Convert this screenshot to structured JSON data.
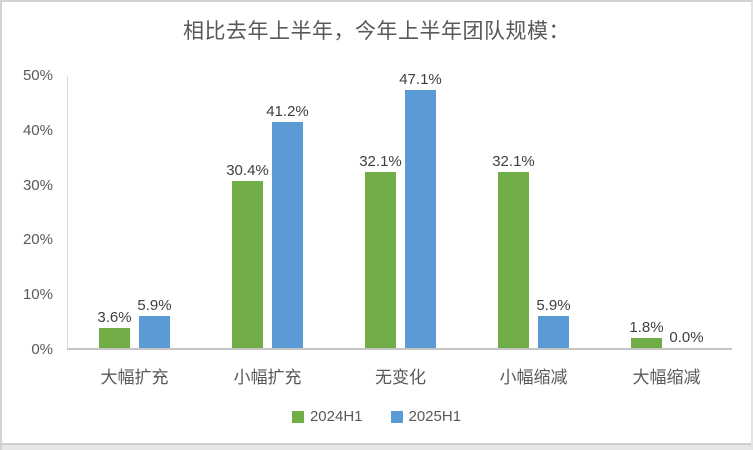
{
  "chart_data": {
    "type": "bar",
    "title": "相比去年上半年，今年上半年团队规模：",
    "categories": [
      "大幅扩充",
      "小幅扩充",
      "无变化",
      "小幅缩减",
      "大幅缩减"
    ],
    "series": [
      {
        "name": "2024H1",
        "color": "#70AD47",
        "values": [
          3.6,
          30.4,
          32.1,
          32.1,
          1.8
        ]
      },
      {
        "name": "2025H1",
        "color": "#5B9BD5",
        "values": [
          5.9,
          41.2,
          47.1,
          5.9,
          0.0
        ]
      }
    ],
    "data_labels": [
      [
        "3.6%",
        "30.4%",
        "32.1%",
        "32.1%",
        "1.8%"
      ],
      [
        "5.9%",
        "41.2%",
        "47.1%",
        "5.9%",
        "0.0%"
      ]
    ],
    "y_ticks": [
      0,
      10,
      20,
      30,
      40,
      50
    ],
    "y_tick_labels": [
      "0%",
      "10%",
      "20%",
      "30%",
      "40%",
      "50%"
    ],
    "ylim": [
      0,
      50
    ],
    "grid": false,
    "legend_position": "bottom",
    "xlabel": "",
    "ylabel": ""
  },
  "style": {
    "series_green": "#70AD47",
    "series_blue": "#5B9BD5",
    "axis_line_color": "#c6c6c6",
    "axis_text_color": "#595959",
    "data_label_color": "#404040",
    "background": "#ffffff"
  }
}
